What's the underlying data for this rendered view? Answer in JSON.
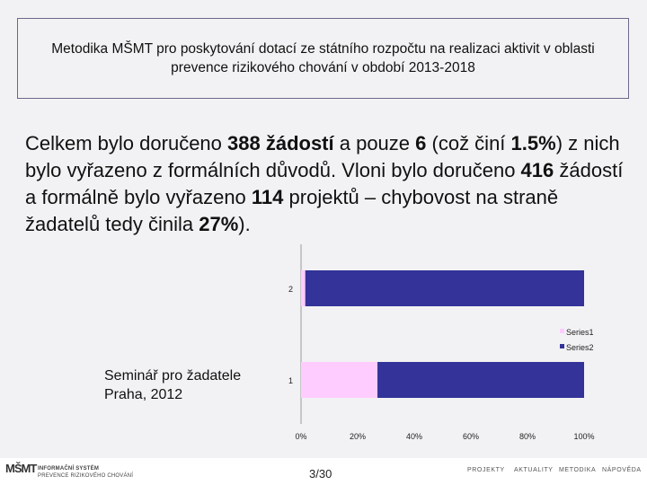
{
  "header": {
    "title": "Metodika MŠMT pro poskytování dotací ze státního rozpočtu na realizaci aktivit v oblasti prevence rizikového chování v období 2013-2018"
  },
  "body": {
    "p1": "Celkem bylo doručeno ",
    "n1": "388 žádostí",
    "p2": " a pouze ",
    "n2": "6",
    "p3": " (což činí ",
    "n3": "1.5%",
    "p4": ") z nich bylo vyřazeno z formálních důvodů. Vloni bylo doručeno ",
    "n4": "416",
    "p5": " žádostí a formálně bylo vyřazeno ",
    "n5": "114",
    "p6": " projektů – chybovost na straně žadatelů tedy činila ",
    "n6": "27%",
    "p7": ")."
  },
  "seminar": {
    "line1": "Seminář pro žadatele",
    "line2": "Praha,  2012"
  },
  "chart_data": {
    "type": "bar",
    "orientation": "horizontal",
    "stacked": "percent",
    "categories": [
      "1",
      "2"
    ],
    "series": [
      {
        "name": "Series1",
        "values": [
          27,
          1.5
        ],
        "color": "#ffccff"
      },
      {
        "name": "Series2",
        "values": [
          73,
          98.5
        ],
        "color": "#333399"
      }
    ],
    "xlim": [
      0,
      100
    ],
    "xticks": [
      "0%",
      "20%",
      "40%",
      "60%",
      "80%",
      "100%"
    ],
    "legend": "right",
    "grid": false
  },
  "footer": {
    "logo": "MŠMT",
    "logo_line1": "INFORMAČNÍ SYSTÉM",
    "logo_line2": "PREVENCE RIZIKOVÉHO CHOVÁNÍ",
    "page": "3/30",
    "nav": [
      "PROJEKTY",
      "AKTUALITY",
      "METODIKA",
      "NÁPOVĚDA"
    ]
  }
}
